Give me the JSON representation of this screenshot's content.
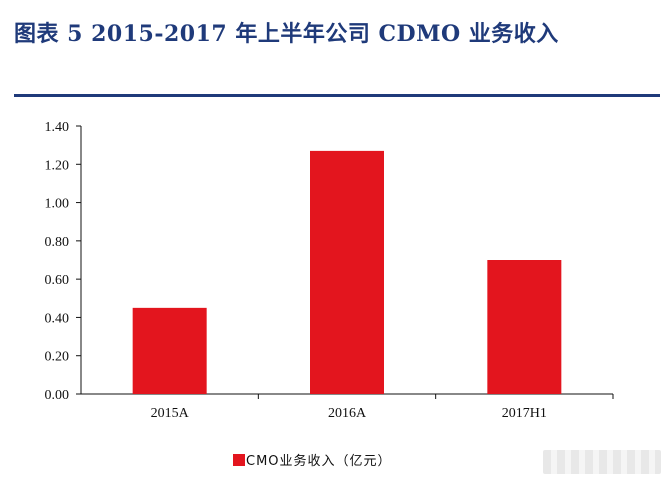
{
  "header": {
    "title": "图表 5   2015-2017 年上半年公司 CDMO 业务收入"
  },
  "chart_data": {
    "type": "bar",
    "title": "",
    "xlabel": "",
    "ylabel": "",
    "categories": [
      "2015A",
      "2016A",
      "2017H1"
    ],
    "series": [
      {
        "name": "CMO业务收入（亿元）",
        "values": [
          0.45,
          1.27,
          0.7
        ],
        "color": "#e3151e"
      }
    ],
    "ylim": [
      0,
      1.4
    ],
    "yticks": [
      "0.00",
      "0.20",
      "0.40",
      "0.60",
      "0.80",
      "1.00",
      "1.20",
      "1.40"
    ],
    "legend_position": "bottom-center",
    "grid": false
  }
}
